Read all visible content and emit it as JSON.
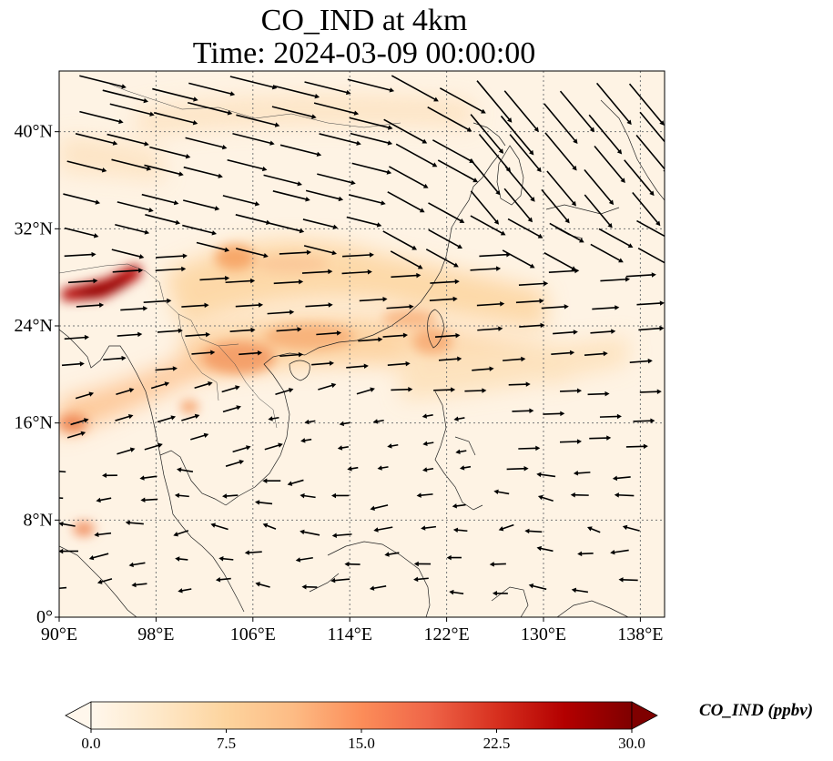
{
  "title": {
    "line1": "CO_IND at 4km",
    "line2": "Time: 2024-03-09 00:00:00"
  },
  "map": {
    "lon_range": [
      90,
      140
    ],
    "lat_range": [
      0,
      45
    ],
    "gridlines": true,
    "x_ticks": [
      "90°E",
      "98°E",
      "106°E",
      "114°E",
      "122°E",
      "130°E",
      "138°E"
    ],
    "y_ticks": [
      "0°",
      "8°N",
      "16°N",
      "24°N",
      "32°N",
      "40°N"
    ],
    "field": "CO_IND concentration shaded (OrRd colormap) with wind vectors",
    "hotspots": [
      {
        "lon": 94.5,
        "lat": 27,
        "value": 30
      },
      {
        "lon": 104.5,
        "lat": 29.5,
        "value": 13
      },
      {
        "lon": 108,
        "lat": 22.5,
        "value": 14
      },
      {
        "lon": 118,
        "lat": 24,
        "value": 12
      },
      {
        "lon": 92.5,
        "lat": 7.2,
        "value": 14
      },
      {
        "lon": 90.5,
        "lat": 16,
        "value": 16
      }
    ]
  },
  "colorbar": {
    "colormap": "OrRd",
    "min": 0.0,
    "max": 30.0,
    "extend": "both",
    "tick_labels": [
      "0.0",
      "7.5",
      "15.0",
      "22.5",
      "30.0"
    ],
    "label": "CO_IND (ppbv)",
    "colors": [
      "#fff7ec",
      "#fee8c8",
      "#fdd49e",
      "#fdbb84",
      "#fc8d59",
      "#ef6548",
      "#d7301f",
      "#b30000",
      "#7f0000"
    ]
  }
}
